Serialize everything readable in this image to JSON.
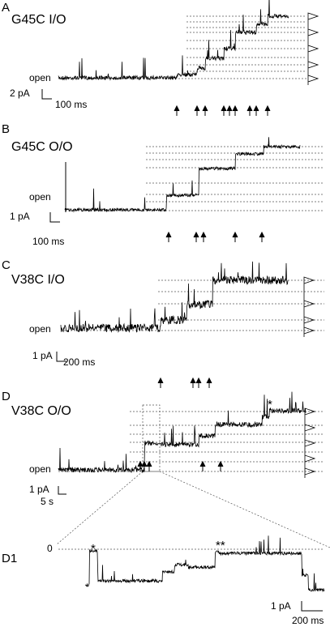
{
  "panels": [
    {
      "label": "A",
      "title": "G45C I/O",
      "open_label": "open",
      "scale_y": "2 pA",
      "scale_x": "100 ms"
    },
    {
      "label": "B",
      "title": "G45C O/O",
      "open_label": "open",
      "scale_y": "1 pA",
      "scale_x": "100 ms"
    },
    {
      "label": "C",
      "title": "V38C I/O",
      "open_label": "open",
      "scale_y": "1 pA",
      "scale_x": "200 ms"
    },
    {
      "label": "D",
      "title": "V38C O/O",
      "open_label": "open",
      "scale_y": "1 pA",
      "scale_x": "5 s",
      "marker": "*"
    }
  ],
  "inset": {
    "label": "D1",
    "zero_label": "0",
    "markers": [
      "*",
      "**"
    ],
    "scale_y": "1 pA",
    "scale_x": "200 ms"
  }
}
